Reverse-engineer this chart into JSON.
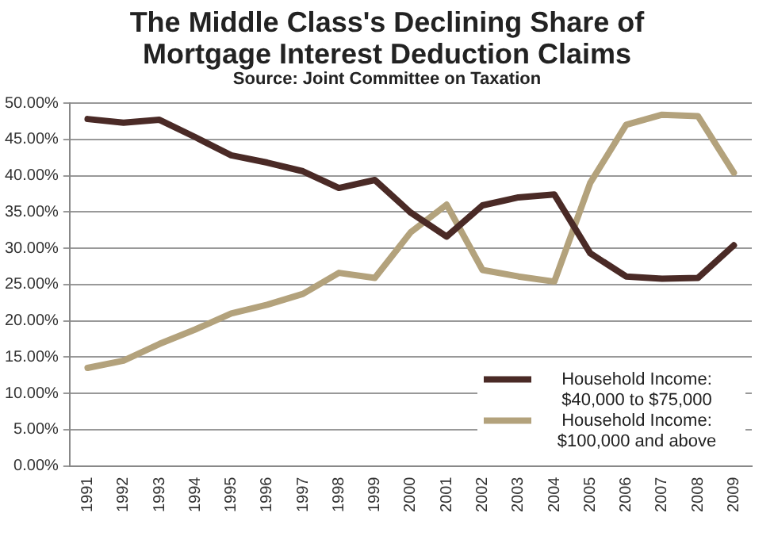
{
  "chart_data": {
    "type": "line",
    "title": "The Middle Class's Declining Share of Mortgage Interest Deduction Claims",
    "subtitle": "Source: Joint Committee on Taxation",
    "categories": [
      "1991",
      "1992",
      "1993",
      "1994",
      "1995",
      "1996",
      "1997",
      "1998",
      "1999",
      "2000",
      "2001",
      "2002",
      "2003",
      "2004",
      "2005",
      "2006",
      "2007",
      "2008",
      "2009"
    ],
    "series": [
      {
        "name": "Household Income: $40,000 to $75,000",
        "color": "#4a2a26",
        "values": [
          47.8,
          47.3,
          47.7,
          45.3,
          42.8,
          41.8,
          40.6,
          38.3,
          39.4,
          34.9,
          31.6,
          35.9,
          37.0,
          37.4,
          29.3,
          26.1,
          25.8,
          25.9,
          30.4
        ]
      },
      {
        "name": "Household Income: $100,000 and above",
        "color": "#b3a27c",
        "values": [
          13.5,
          14.5,
          16.8,
          18.8,
          21.0,
          22.2,
          23.7,
          26.6,
          25.9,
          32.2,
          36.0,
          27.0,
          26.1,
          25.4,
          39.0,
          47.0,
          48.4,
          48.2,
          40.4
        ]
      }
    ],
    "ylim": [
      0,
      50
    ],
    "yticks": [
      {
        "value": 0,
        "label": "0.00%"
      },
      {
        "value": 5,
        "label": "5.00%"
      },
      {
        "value": 10,
        "label": "10.00%"
      },
      {
        "value": 15,
        "label": "15.00%"
      },
      {
        "value": 20,
        "label": "20.00%"
      },
      {
        "value": 25,
        "label": "25.00%"
      },
      {
        "value": 30,
        "label": "30.00%"
      },
      {
        "value": 35,
        "label": "35.00%"
      },
      {
        "value": 40,
        "label": "40.00%"
      },
      {
        "value": 45,
        "label": "45.00%"
      },
      {
        "value": 50,
        "label": "50.00%"
      }
    ],
    "grid": "y",
    "legend": "bottom right",
    "marker": "none",
    "line_style": "solid"
  }
}
